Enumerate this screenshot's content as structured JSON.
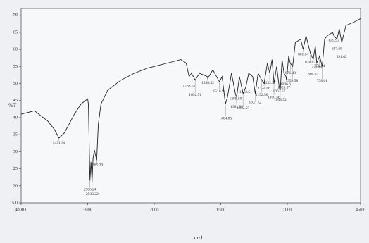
{
  "chart_data": {
    "type": "line",
    "ylabel": "%T",
    "xlabel": "cm-1",
    "xlim": [
      4000,
      450
    ],
    "ylim": [
      15,
      72
    ],
    "xticks": [
      {
        "value": 4000,
        "label": "4000.0"
      },
      3000,
      2000,
      1500,
      1000,
      {
        "value": 450,
        "label": "450.0"
      }
    ],
    "yticks": [
      {
        "value": 15,
        "label": "15.0"
      },
      20,
      25,
      30,
      35,
      40,
      45,
      50,
      55,
      60,
      65,
      70
    ],
    "series": [
      {
        "color": "#222222",
        "x": [
          4000,
          3800,
          3600,
          3500,
          3431,
          3350,
          3200,
          3100,
          3000,
          2990,
          2966,
          2950,
          2935,
          2920,
          2900,
          2865,
          2840,
          2800,
          2700,
          2500,
          2300,
          2100,
          2000,
          1900,
          1800,
          1760,
          1738,
          1720,
          1692,
          1660,
          1600,
          1598,
          1560,
          1510,
          1490,
          1465,
          1450,
          1420,
          1390,
          1381,
          1360,
          1332,
          1312,
          1290,
          1260,
          1241,
          1220,
          1192,
          1174,
          1150,
          1132,
          1115,
          1100,
          1080,
          1061,
          1053,
          1040,
          1025,
          1010,
          1006,
          990,
          978,
          960,
          940,
          900,
          881,
          860,
          828,
          806,
          790,
          779,
          758,
          738,
          720,
          700,
          660,
          650,
          627,
          610,
          591,
          560,
          500,
          450
        ],
        "values": [
          41,
          42,
          39,
          36.5,
          34,
          35.5,
          41,
          44,
          45.5,
          44,
          21.5,
          27,
          21,
          28,
          30.5,
          27.5,
          38,
          44,
          48,
          51,
          53,
          54.5,
          55,
          56,
          57,
          56,
          52,
          53,
          51,
          53,
          52,
          51.5,
          54,
          50.5,
          52,
          44,
          46,
          53,
          47,
          46,
          52,
          47,
          49,
          53,
          52,
          47,
          53,
          51,
          50,
          56,
          53,
          57,
          50,
          55,
          49,
          48,
          57,
          53,
          52,
          51,
          58,
          56,
          55,
          62,
          63,
          60,
          64,
          59,
          57,
          61,
          56,
          58,
          55,
          63,
          64,
          65,
          64,
          63,
          66,
          62,
          67,
          68,
          69
        ]
      }
    ],
    "annotations": [
      {
        "x": 3431.34,
        "label": "3431.34"
      },
      {
        "x": 2966.24,
        "label": "2966.24"
      },
      {
        "x": 2933.22,
        "label": "2933.22"
      },
      {
        "x": 2865.3,
        "label": "2865.30"
      },
      {
        "x": 1738.51,
        "label": "1738.51"
      },
      {
        "x": 1692.51,
        "label": "1692.51"
      },
      {
        "x": 1598.52,
        "label": "1598.52"
      },
      {
        "x": 1510.94,
        "label": "1510.94"
      },
      {
        "x": 1464.85,
        "label": "1464.85"
      },
      {
        "x": 1389.5,
        "label": "1389.50"
      },
      {
        "x": 1381.08,
        "label": "1381.08"
      },
      {
        "x": 1332.55,
        "label": "1332.55"
      },
      {
        "x": 1312.51,
        "label": "1312.51"
      },
      {
        "x": 1241.54,
        "label": "1241.54"
      },
      {
        "x": 1192.56,
        "label": "1192.56"
      },
      {
        "x": 1174.66,
        "label": "1174.66"
      },
      {
        "x": 1132.57,
        "label": "1132.57"
      },
      {
        "x": 1100.56,
        "label": "1100.56"
      },
      {
        "x": 1061.57,
        "label": "1061.57"
      },
      {
        "x": 1053.52,
        "label": "1053.52"
      },
      {
        "x": 1025.57,
        "label": "1025.57"
      },
      {
        "x": 1006.61,
        "label": "1006.61"
      },
      {
        "x": 976.43,
        "label": "976.43"
      },
      {
        "x": 959.58,
        "label": "959.58"
      },
      {
        "x": 881.04,
        "label": "881.04"
      },
      {
        "x": 828.02,
        "label": "828.02"
      },
      {
        "x": 806.63,
        "label": "806.63"
      },
      {
        "x": 779.4,
        "label": "779.40"
      },
      {
        "x": 758.04,
        "label": "758.04"
      },
      {
        "x": 738.61,
        "label": "738.61"
      },
      {
        "x": 649.93,
        "label": "649.93"
      },
      {
        "x": 627.65,
        "label": "627.65"
      },
      {
        "x": 591.62,
        "label": "591.62"
      }
    ]
  }
}
